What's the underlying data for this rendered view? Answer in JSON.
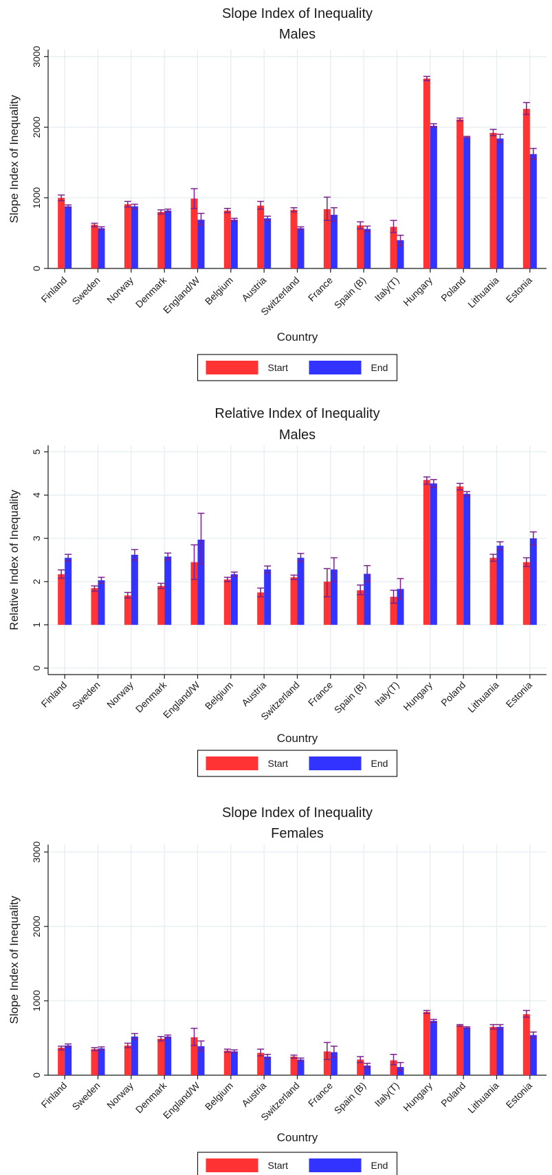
{
  "colors": {
    "start": "#ff3333",
    "end": "#3333ff",
    "errorbar": "#7a1f8c",
    "grid": "#e3ecef",
    "axis": "#1a1a1a"
  },
  "chart_data": [
    {
      "type": "bar",
      "title": "Slope Index of Inequality",
      "subtitle": "Males",
      "xlabel": "Country",
      "ylabel": "Slope Index of Inequality",
      "ylim": [
        0,
        3100
      ],
      "yticks": [
        0,
        1000,
        2000,
        3000
      ],
      "ytick_labels": [
        "0",
        "1000",
        "2000",
        "3000"
      ],
      "grid": true,
      "legend": "bottom",
      "categories": [
        "Finland",
        "Sweden",
        "Norway",
        "Denmark",
        "England/W",
        "Belgium",
        "Austria",
        "Switzerland",
        "France",
        "Spain (B)",
        "Italy(T)",
        "Hungary",
        "Poland",
        "Lithuania",
        "Estonia"
      ],
      "series": [
        {
          "name": "Start",
          "color": "#ff3333",
          "values": [
            1000,
            620,
            910,
            800,
            990,
            820,
            890,
            830,
            840,
            610,
            590,
            2690,
            2110,
            1920,
            2260
          ],
          "err_low": [
            960,
            590,
            870,
            770,
            850,
            790,
            840,
            800,
            680,
            560,
            510,
            2660,
            2090,
            1880,
            2180
          ],
          "err_high": [
            1040,
            640,
            950,
            830,
            1130,
            850,
            950,
            860,
            1010,
            660,
            680,
            2720,
            2130,
            1970,
            2350
          ]
        },
        {
          "name": "End",
          "color": "#3333ff",
          "values": [
            880,
            570,
            880,
            820,
            690,
            690,
            710,
            570,
            760,
            560,
            400,
            2020,
            1860,
            1840,
            1620
          ],
          "err_low": [
            860,
            550,
            850,
            800,
            620,
            670,
            680,
            550,
            670,
            520,
            320,
            2000,
            1850,
            1790,
            1550
          ],
          "err_high": [
            900,
            590,
            910,
            840,
            780,
            710,
            740,
            590,
            860,
            600,
            470,
            2050,
            1870,
            1900,
            1700
          ]
        }
      ]
    },
    {
      "type": "bar",
      "title": "Relative Index of Inequality",
      "subtitle": "Males",
      "xlabel": "Country",
      "ylabel": "Relative Index of Inequality",
      "ylim": [
        -0.15,
        5.15
      ],
      "ybase": 1,
      "yticks": [
        0,
        1,
        2,
        3,
        4,
        5
      ],
      "ytick_labels": [
        "0",
        "1",
        "2",
        "3",
        "4",
        "5"
      ],
      "grid": true,
      "legend": "bottom",
      "categories": [
        "Finland",
        "Sweden",
        "Norway",
        "Denmark",
        "England/W",
        "Belgium",
        "Austria",
        "Switzerland",
        "France",
        "Spain (B)",
        "Italy(T)",
        "Hungary",
        "Poland",
        "Lithuania",
        "Estonia"
      ],
      "series": [
        {
          "name": "Start",
          "color": "#ff3333",
          "values": [
            2.17,
            1.85,
            1.68,
            1.9,
            2.45,
            2.05,
            1.75,
            2.1,
            2.0,
            1.8,
            1.65,
            4.35,
            4.2,
            2.55,
            2.45
          ],
          "err_low": [
            2.08,
            1.78,
            1.62,
            1.84,
            2.05,
            2.0,
            1.65,
            2.05,
            1.65,
            1.7,
            1.5,
            4.25,
            4.12,
            2.47,
            2.35
          ],
          "err_high": [
            2.27,
            1.9,
            1.75,
            1.96,
            2.85,
            2.1,
            1.85,
            2.15,
            2.3,
            1.92,
            1.8,
            4.42,
            4.27,
            2.63,
            2.55
          ]
        },
        {
          "name": "End",
          "color": "#3333ff",
          "values": [
            2.55,
            2.03,
            2.62,
            2.58,
            2.97,
            2.17,
            2.28,
            2.55,
            2.28,
            2.18,
            1.83,
            4.27,
            4.03,
            2.83,
            3.0
          ],
          "err_low": [
            2.48,
            1.96,
            2.5,
            2.5,
            2.4,
            2.12,
            2.2,
            2.47,
            2.0,
            2.0,
            1.6,
            4.18,
            3.98,
            2.74,
            2.85
          ],
          "err_high": [
            2.63,
            2.1,
            2.74,
            2.66,
            3.58,
            2.22,
            2.36,
            2.65,
            2.55,
            2.37,
            2.07,
            4.36,
            4.08,
            2.92,
            3.15
          ]
        }
      ]
    },
    {
      "type": "bar",
      "title": "Slope Index of Inequality",
      "subtitle": "Females",
      "xlabel": "Country",
      "ylabel": "Slope Index of Inequality",
      "ylim": [
        0,
        3100
      ],
      "yticks": [
        0,
        1000,
        2000,
        3000
      ],
      "ytick_labels": [
        "0",
        "1000",
        "2000",
        "3000"
      ],
      "grid": true,
      "legend": "bottom",
      "categories": [
        "Finland",
        "Sweden",
        "Norway",
        "Denmark",
        "England/W",
        "Belgium",
        "Austria",
        "Switzerland",
        "France",
        "Spain (B)",
        "Italy(T)",
        "Hungary",
        "Poland",
        "Lithuania",
        "Estonia"
      ],
      "series": [
        {
          "name": "Start",
          "color": "#ff3333",
          "values": [
            370,
            350,
            400,
            490,
            510,
            330,
            300,
            250,
            320,
            210,
            200,
            850,
            670,
            650,
            820
          ],
          "err_low": [
            340,
            330,
            370,
            460,
            400,
            310,
            260,
            230,
            210,
            170,
            140,
            830,
            660,
            620,
            780
          ],
          "err_high": [
            390,
            370,
            430,
            520,
            630,
            350,
            350,
            270,
            440,
            250,
            280,
            870,
            680,
            680,
            870
          ]
        },
        {
          "name": "End",
          "color": "#3333ff",
          "values": [
            400,
            360,
            520,
            520,
            390,
            320,
            250,
            210,
            310,
            130,
            110,
            730,
            640,
            650,
            540
          ],
          "err_low": [
            380,
            340,
            490,
            500,
            330,
            300,
            220,
            190,
            240,
            100,
            60,
            710,
            630,
            620,
            500
          ],
          "err_high": [
            420,
            380,
            560,
            540,
            460,
            340,
            280,
            230,
            390,
            160,
            170,
            750,
            650,
            680,
            580
          ]
        }
      ]
    }
  ]
}
